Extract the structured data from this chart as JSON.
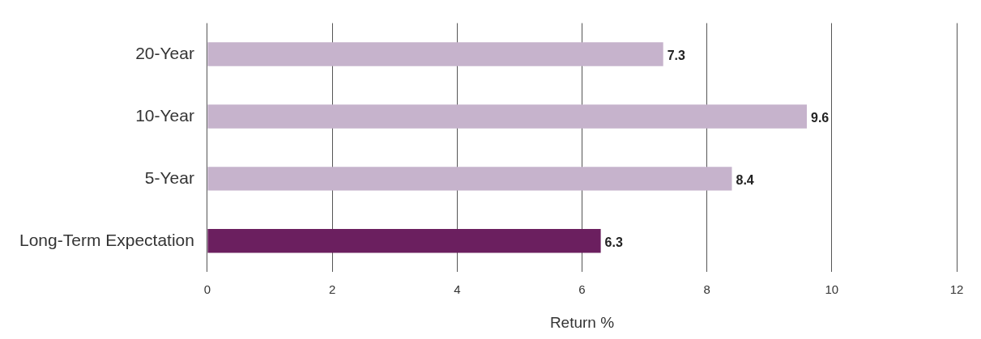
{
  "chart_data": {
    "type": "bar",
    "orientation": "horizontal",
    "categories": [
      "20-Year",
      "10-Year",
      "5-Year",
      "Long-Term Expectation"
    ],
    "values": [
      7.3,
      9.6,
      8.4,
      6.3
    ],
    "colors": [
      "#c6b3cc",
      "#c6b3cc",
      "#c6b3cc",
      "#6b1f5f"
    ],
    "xlim": [
      0,
      12
    ],
    "xticks": [
      0,
      2,
      4,
      6,
      8,
      10,
      12
    ],
    "xlabel": "Return %",
    "grid": "x",
    "data_labels": true,
    "legend": false
  }
}
